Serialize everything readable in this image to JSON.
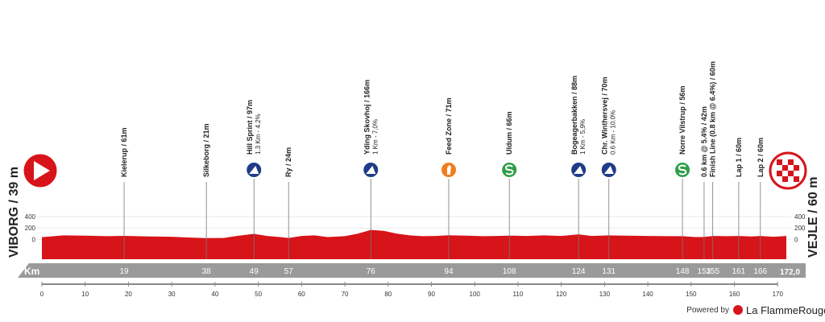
{
  "chart_data": {
    "type": "area",
    "start": "VIBORG / 39 m",
    "finish": "VEJLE / 60 m",
    "x_label": "Km",
    "credit_prefix": "Powered by",
    "credit": "La FlammeRouge",
    "color": "#d7141a",
    "x": [
      0,
      5,
      10,
      15,
      19,
      25,
      30,
      35,
      38,
      42,
      45,
      49,
      52,
      55,
      57,
      60,
      63,
      66,
      70,
      73,
      76,
      79,
      82,
      85,
      88,
      91,
      94,
      98,
      102,
      105,
      108,
      112,
      116,
      120,
      124,
      127,
      131,
      135,
      140,
      145,
      148,
      151,
      153,
      155,
      158,
      161,
      164,
      166,
      169,
      172
    ],
    "values": [
      39,
      70,
      65,
      55,
      61,
      50,
      45,
      30,
      21,
      25,
      60,
      97,
      60,
      40,
      24,
      60,
      70,
      40,
      55,
      100,
      166,
      150,
      100,
      70,
      55,
      60,
      71,
      65,
      55,
      60,
      66,
      60,
      70,
      60,
      88,
      60,
      70,
      65,
      60,
      55,
      56,
      40,
      42,
      60,
      55,
      60,
      50,
      60,
      45,
      60
    ],
    "xlim": [
      0,
      172
    ],
    "xticks": [
      0,
      10,
      20,
      30,
      40,
      50,
      60,
      70,
      80,
      90,
      100,
      110,
      120,
      130,
      140,
      150,
      160,
      170
    ],
    "ylim": [
      -350,
      600
    ],
    "yticks": [
      0,
      200,
      400
    ],
    "waypoints": [
      {
        "name": "Kielerup / 61m",
        "km": 19
      },
      {
        "name": "Silkeborg / 21m",
        "km": 38
      },
      {
        "name": "Hill Sprint / 97m",
        "note": "1.3 Km - 4.2%",
        "km": 49,
        "icon": "climb"
      },
      {
        "name": "Ry / 24m",
        "km": 57
      },
      {
        "name": "Yding Skovhoj / 166m",
        "note": "1 Km - 7,0%",
        "km": 76,
        "icon": "climb"
      },
      {
        "name": "Feed Zone / 71m",
        "km": 94,
        "icon": "feed"
      },
      {
        "name": "Uldum / 66m",
        "km": 108,
        "icon": "sprint"
      },
      {
        "name": "Bogeagerbakken / 88m",
        "note": "1 Km - 5,9%",
        "km": 124,
        "icon": "climb"
      },
      {
        "name": "Chr. Winthersvej / 70m",
        "note": "0.6 Km - 10.0%",
        "km": 131,
        "icon": "climb"
      },
      {
        "name": "Norre Vilstrup / 56m",
        "km": 148,
        "icon": "sprint"
      },
      {
        "name": "0.6 km @ 5.4% / 42m",
        "km": 153
      },
      {
        "name": "Finish Line (0.8 km @ 6.4%) / 60m",
        "km": 155
      },
      {
        "name": "Lap 1 / 60m",
        "km": 161
      },
      {
        "name": "Lap 2 / 60m",
        "km": 166
      }
    ],
    "finish_km": {
      "value": 172,
      "label": "172,0"
    }
  }
}
